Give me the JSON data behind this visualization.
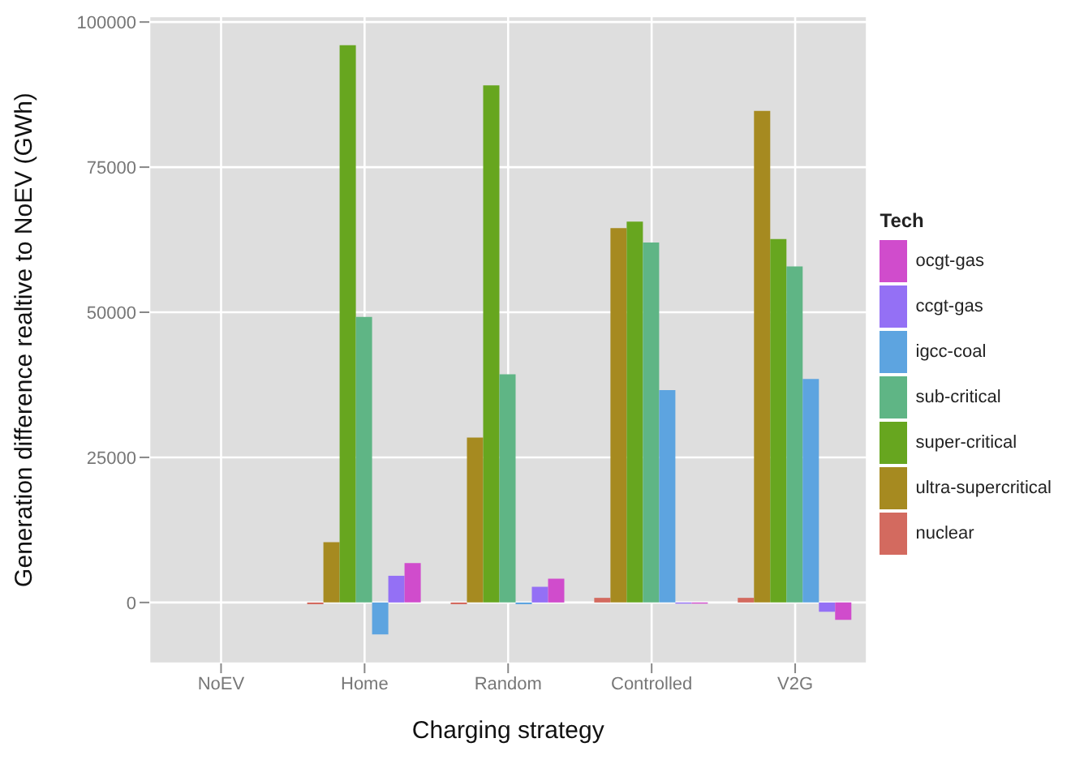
{
  "chart_data": {
    "type": "bar",
    "xlabel": "Charging strategy",
    "ylabel": "Generation difference realtive to NoEV (GWh)",
    "legend_title": "Tech",
    "categories": [
      "NoEV",
      "Home",
      "Random",
      "Controlled",
      "V2G"
    ],
    "series": [
      {
        "name": "nuclear",
        "color": "#d36a5f",
        "values": [
          0,
          -300,
          -300,
          800,
          800
        ]
      },
      {
        "name": "ultra-supercritical",
        "color": "#a68a20",
        "values": [
          0,
          10400,
          28400,
          64500,
          84700
        ]
      },
      {
        "name": "super-critical",
        "color": "#67a61f",
        "values": [
          0,
          96000,
          89100,
          65600,
          62600
        ]
      },
      {
        "name": "sub-critical",
        "color": "#5fb585",
        "values": [
          0,
          49200,
          39300,
          62000,
          57900
        ]
      },
      {
        "name": "igcc-coal",
        "color": "#5da4e0",
        "values": [
          0,
          -5500,
          -300,
          36600,
          38500
        ]
      },
      {
        "name": "ccgt-gas",
        "color": "#9470f5",
        "values": [
          0,
          4600,
          2700,
          -200,
          -1600
        ]
      },
      {
        "name": "ocgt-gas",
        "color": "#d04ccc",
        "values": [
          0,
          6800,
          4100,
          -200,
          -3000
        ]
      }
    ],
    "ylim": [
      -10500,
      101000
    ],
    "yticks": [
      0,
      25000,
      50000,
      75000,
      100000
    ],
    "grid": true,
    "legend": "right"
  }
}
